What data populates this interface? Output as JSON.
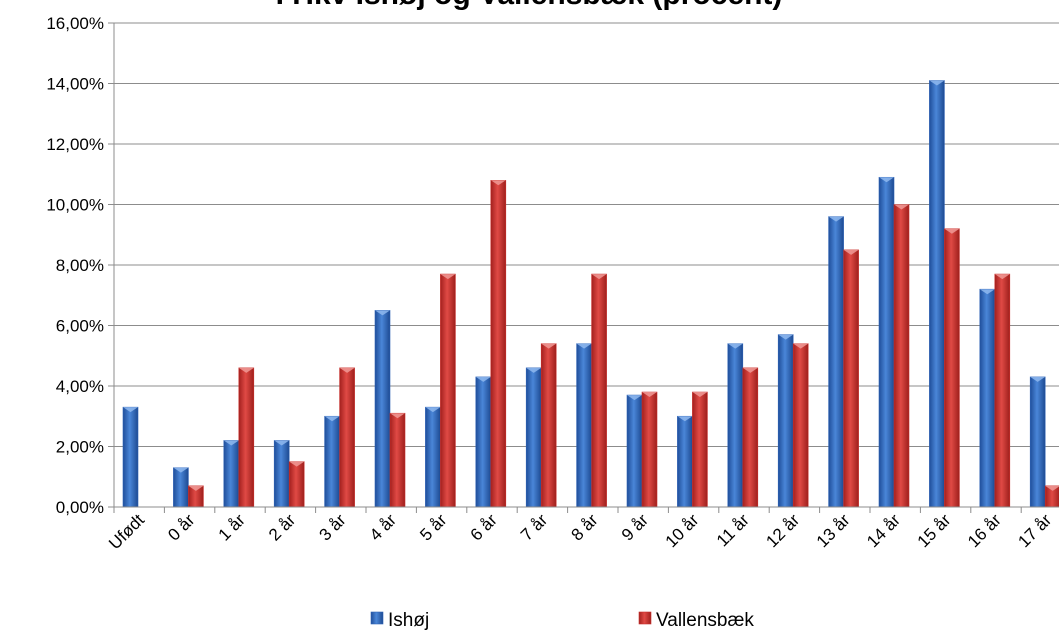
{
  "chart_data": {
    "type": "bar",
    "title": "I Hkv Ishøj og Vallensbæk (procent)",
    "categories": [
      "Ufødt",
      "0 år",
      "1 år",
      "2 år",
      "3 år",
      "4 år",
      "5 år",
      "6 år",
      "7 år",
      "8 år",
      "9 år",
      "10 år",
      "11 år",
      "12 år",
      "13 år",
      "14 år",
      "15 år",
      "16 år",
      "17 år"
    ],
    "series": [
      {
        "name": "Ishøj",
        "color": "#2f63b6",
        "values": [
          3.3,
          1.3,
          2.2,
          2.2,
          3.0,
          6.5,
          3.3,
          4.3,
          4.6,
          5.4,
          3.7,
          3.0,
          5.4,
          5.7,
          9.6,
          10.9,
          14.1,
          7.2,
          4.3
        ]
      },
      {
        "name": "Vallensbæk",
        "color": "#c9302c",
        "values": [
          0,
          0.7,
          4.6,
          1.5,
          4.6,
          3.1,
          7.7,
          10.8,
          5.4,
          7.7,
          3.8,
          3.8,
          4.6,
          5.4,
          8.5,
          10.0,
          9.2,
          7.7,
          0.7
        ]
      }
    ],
    "ylim": [
      0,
      16
    ],
    "yticks": [
      "0,00%",
      "2,00%",
      "4,00%",
      "6,00%",
      "8,00%",
      "10,00%",
      "12,00%",
      "14,00%",
      "16,00%"
    ],
    "xlabel": "",
    "ylabel": "",
    "grid": true,
    "legend_position": "bottom"
  }
}
